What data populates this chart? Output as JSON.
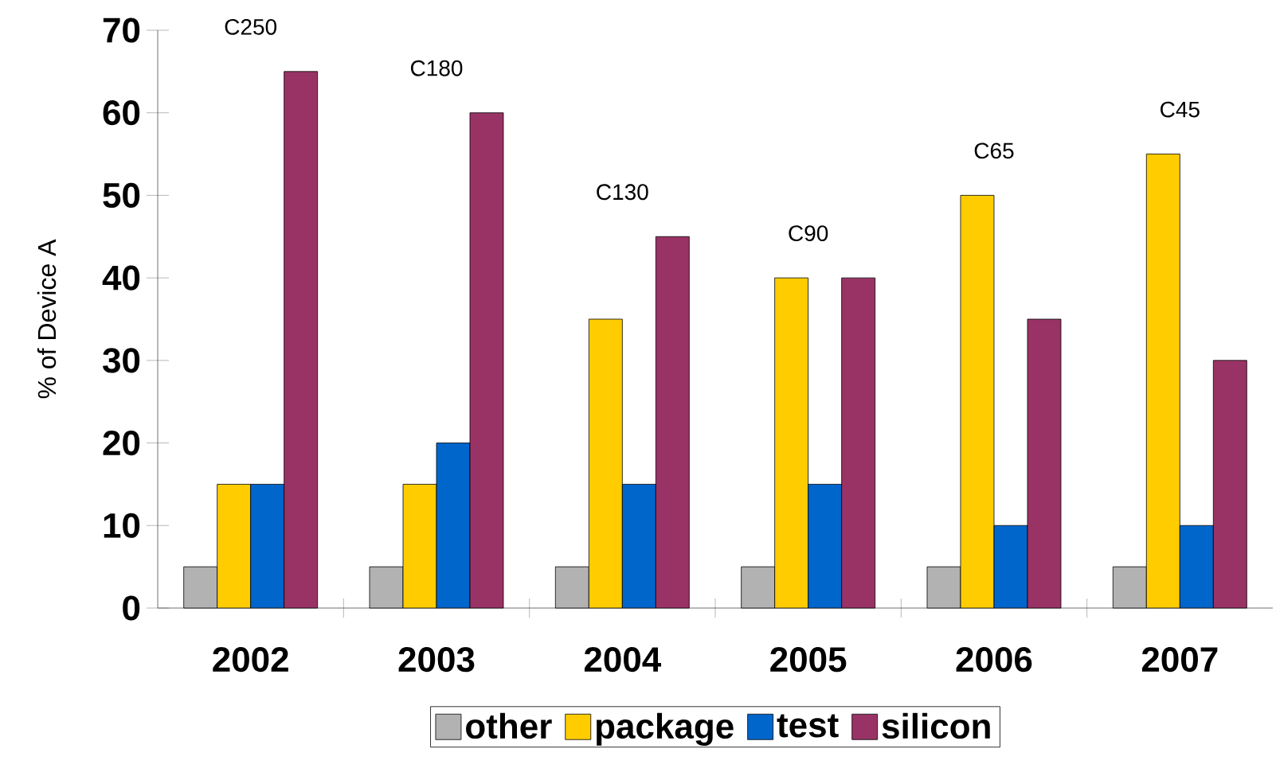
{
  "chart_data": {
    "type": "bar",
    "ylabel": "% of Device A",
    "categories": [
      "2002",
      "2003",
      "2004",
      "2005",
      "2006",
      "2007"
    ],
    "series": [
      {
        "name": "other",
        "color": "#b2b2b2",
        "values": [
          5,
          5,
          5,
          5,
          5,
          5
        ]
      },
      {
        "name": "package",
        "color": "#ffcc00",
        "values": [
          15,
          15,
          35,
          40,
          50,
          55
        ]
      },
      {
        "name": "test",
        "color": "#0066cc",
        "values": [
          15,
          20,
          15,
          15,
          10,
          10
        ]
      },
      {
        "name": "silicon",
        "color": "#993366",
        "values": [
          65,
          60,
          45,
          40,
          35,
          30
        ]
      }
    ],
    "ylim": [
      0,
      70
    ],
    "yticks": [
      0,
      10,
      20,
      30,
      40,
      50,
      60,
      70
    ],
    "grid": false,
    "legend": "bottom",
    "annotations": [
      "C250",
      "C180",
      "C130",
      "C90",
      "C65",
      "C45"
    ]
  }
}
